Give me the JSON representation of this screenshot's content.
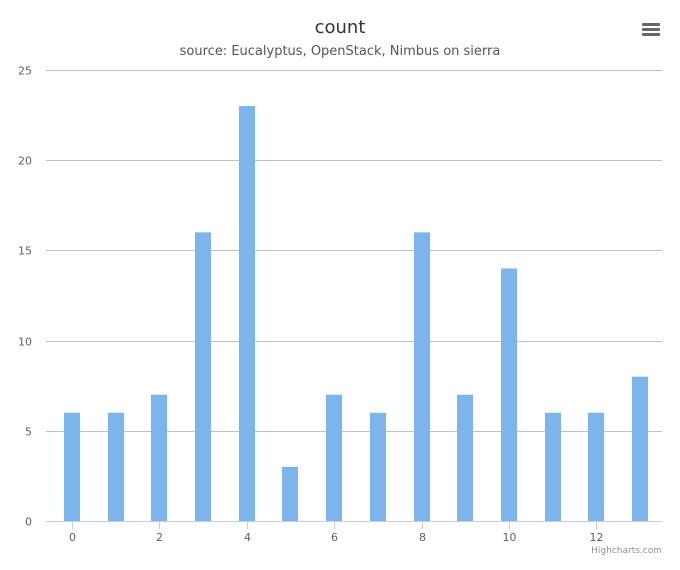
{
  "chart_data": {
    "type": "bar",
    "title": "count",
    "subtitle": "source: Eucalyptus, OpenStack, Nimbus on sierra",
    "xlabel": "",
    "ylabel": "",
    "x": [
      0,
      1,
      2,
      3,
      4,
      5,
      6,
      7,
      8,
      9,
      10,
      11,
      12,
      13
    ],
    "values": [
      6,
      6,
      7,
      16,
      23,
      3,
      7,
      6,
      16,
      7,
      14,
      6,
      6,
      8
    ],
    "xlim": [
      -0.5,
      13.5
    ],
    "ylim": [
      0,
      25
    ],
    "x_ticks": [
      0,
      2,
      4,
      6,
      8,
      10,
      12
    ],
    "y_ticks": [
      0,
      5,
      10,
      15,
      20,
      25
    ],
    "grid": true,
    "legend": "none",
    "bar_color": "#7cb5ec",
    "grid_color": "#c0c0c0",
    "axis_color": "#c0d0e0"
  },
  "credits": "Highcharts.com",
  "menu_icon": "hamburger-menu-icon"
}
